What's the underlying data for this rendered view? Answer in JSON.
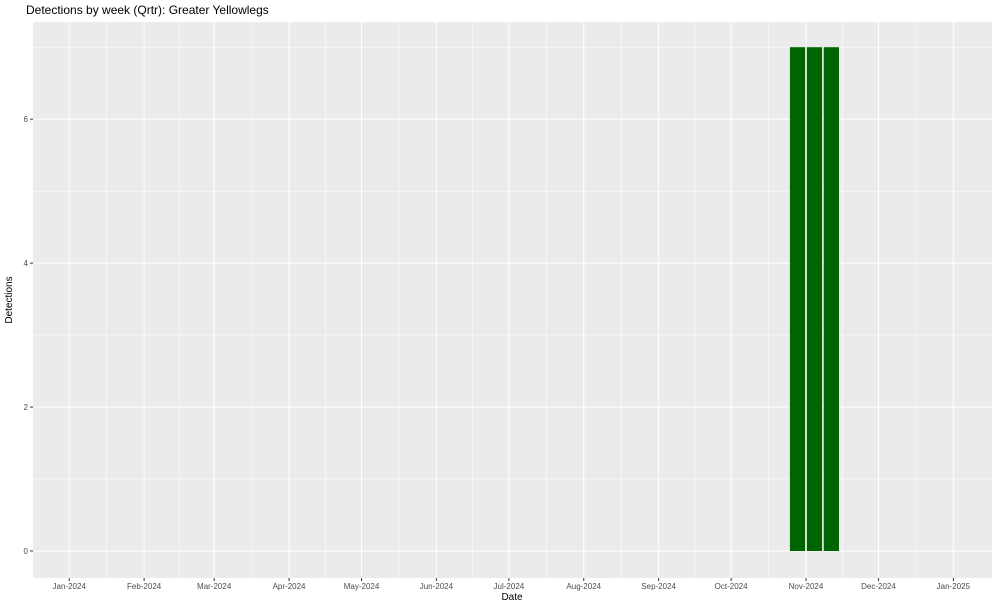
{
  "chart_data": {
    "type": "bar",
    "title": "Detections by week (Qrtr): Greater Yellowlegs",
    "xlabel": "Date",
    "ylabel": "Detections",
    "x": [
      "2024-10-28",
      "2024-11-04",
      "2024-11-11"
    ],
    "values": [
      7,
      7,
      7
    ],
    "bar_color": "#006400",
    "xlim": [
      "2023-12-17",
      "2025-01-17"
    ],
    "ylim": [
      -0.375,
      7.35
    ],
    "x_ticks": [
      "2024-01-01",
      "2024-02-01",
      "2024-03-01",
      "2024-04-01",
      "2024-05-01",
      "2024-06-01",
      "2024-07-01",
      "2024-08-01",
      "2024-09-01",
      "2024-10-01",
      "2024-11-01",
      "2024-12-01",
      "2025-01-01"
    ],
    "x_tick_labels": [
      "Jan-2024",
      "Feb-2024",
      "Mar-2024",
      "Apr-2024",
      "May-2024",
      "Jun-2024",
      "Jul-2024",
      "Aug-2024",
      "Sep-2024",
      "Oct-2024",
      "Nov-2024",
      "Dec-2024",
      "Jan-2025"
    ],
    "y_ticks": [
      0,
      2,
      4,
      6
    ],
    "y_tick_labels": [
      "0",
      "2",
      "4",
      "6"
    ],
    "grid": true,
    "panel_background": "#EBEBEB"
  }
}
